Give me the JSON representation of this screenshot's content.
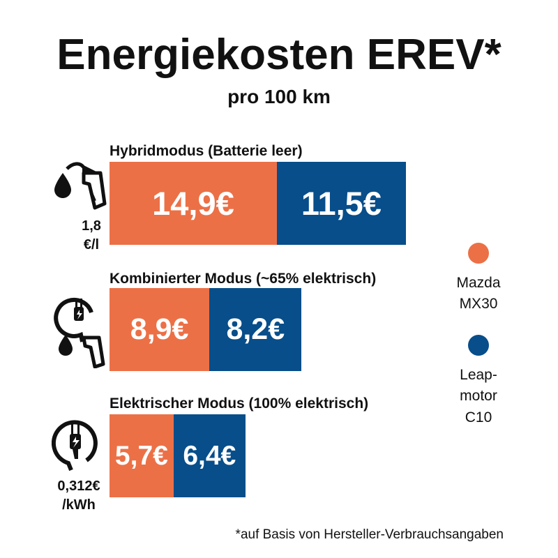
{
  "title": "Energiekosten EREV*",
  "subtitle": "pro 100 km",
  "footnote": "*auf Basis von Hersteller-Verbrauchsangaben",
  "colors": {
    "mazda": "#EC7046",
    "leapmotor": "#074E8A"
  },
  "icons": [
    "fuel-drop-nozzle-icon",
    "plug-icon",
    "fuel-drop-nozzle-icon",
    "plug-icon"
  ],
  "price_labels": {
    "fuel": [
      "1,8",
      "€/l"
    ],
    "electric": [
      "0,312€",
      "/kWh"
    ]
  },
  "legend": [
    {
      "lines": [
        "Mazda",
        "MX30"
      ]
    },
    {
      "lines": [
        "Leap-",
        "motor",
        "C10"
      ]
    }
  ],
  "chart_data": {
    "type": "bar",
    "orientation": "horizontal",
    "stacked": true,
    "unit": "€",
    "title": "Energiekosten EREV*",
    "subtitle": "pro 100 km",
    "categories": [
      "Hybridmodus (Batterie leer)",
      "Kombinierter Modus (~65% elektrisch)",
      "Elektrischer Modus  (100% elektrisch)"
    ],
    "series": [
      {
        "name": "Mazda MX30",
        "values": [
          14.9,
          8.9,
          5.7
        ],
        "labels": [
          "14,9€",
          "8,9€",
          "5,7€"
        ]
      },
      {
        "name": "Leapmotor C10",
        "values": [
          11.5,
          8.2,
          6.4
        ],
        "labels": [
          "11,5€",
          "8,2€",
          "6,4€"
        ]
      }
    ],
    "legend_position": "right",
    "grid": false
  }
}
